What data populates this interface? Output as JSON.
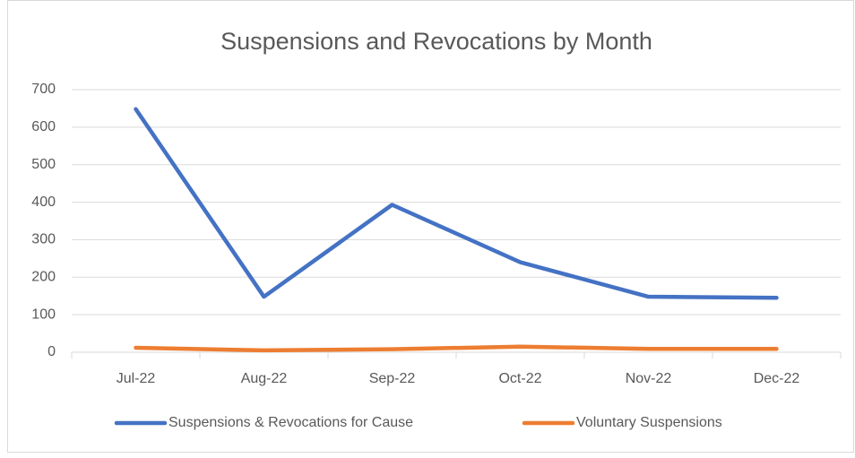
{
  "chart_data": {
    "type": "line",
    "title": "Suspensions and Revocations by Month",
    "categories": [
      "Jul-22",
      "Aug-22",
      "Sep-22",
      "Oct-22",
      "Nov-22",
      "Dec-22"
    ],
    "series": [
      {
        "name": "Suspensions & Revocations for Cause",
        "color": "#4472c4",
        "values": [
          648,
          148,
          393,
          240,
          148,
          145
        ]
      },
      {
        "name": "Voluntary Suspensions",
        "color": "#ed7d31",
        "values": [
          12,
          5,
          8,
          15,
          9,
          9
        ]
      }
    ],
    "ylim": [
      0,
      700
    ],
    "yticks": [
      0,
      100,
      200,
      300,
      400,
      500,
      600,
      700
    ],
    "grid": true,
    "legend": "bottom"
  }
}
